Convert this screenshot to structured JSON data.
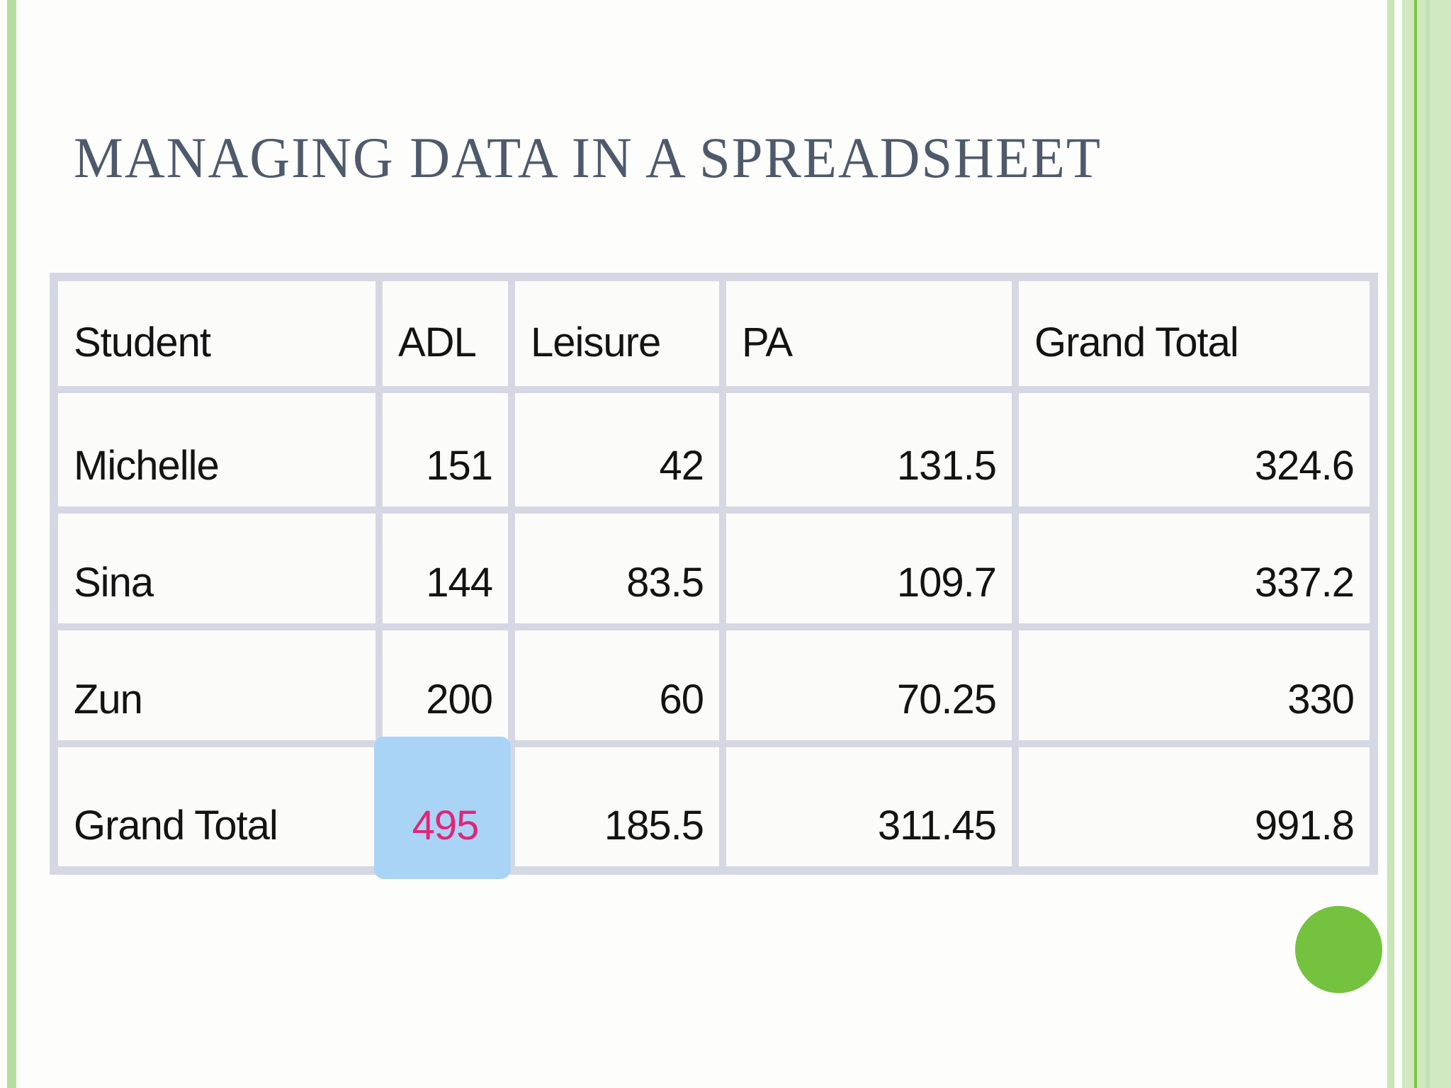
{
  "slide": {
    "title": "MANAGING DATA IN A SPREADSHEET"
  },
  "table": {
    "columns": [
      "Student",
      "ADL",
      "Leisure",
      "PA",
      "Grand Total"
    ],
    "rows": [
      {
        "label": "Michelle",
        "adl": "151",
        "leisure": "42",
        "pa": "131.5",
        "grand_total": "324.6"
      },
      {
        "label": "Sina",
        "adl": "144",
        "leisure": "83.5",
        "pa": "109.7",
        "grand_total": "337.2"
      },
      {
        "label": "Zun",
        "adl": "200",
        "leisure": "60",
        "pa": "70.25",
        "grand_total": "330"
      },
      {
        "label": "Grand Total",
        "adl": "495",
        "leisure": "185.5",
        "pa": "311.45",
        "grand_total": "991.8"
      }
    ],
    "highlighted_cell": {
      "row": "Grand Total",
      "column": "ADL",
      "value": "495",
      "highlight_color": "#a9d4f6",
      "text_color": "#e32478"
    }
  },
  "colors": {
    "title_text": "#4e5a6b",
    "table_border": "#d5d8e3",
    "cell_background": "#fbfcfa",
    "left_stripe_green": "#b6dd9f",
    "right_panel_green": "#cfe8c0",
    "right_accent_green": "#7dc247",
    "circle_green": "#74c23e",
    "highlight_blue": "#a9d4f6",
    "highlight_pink": "#e32478"
  }
}
